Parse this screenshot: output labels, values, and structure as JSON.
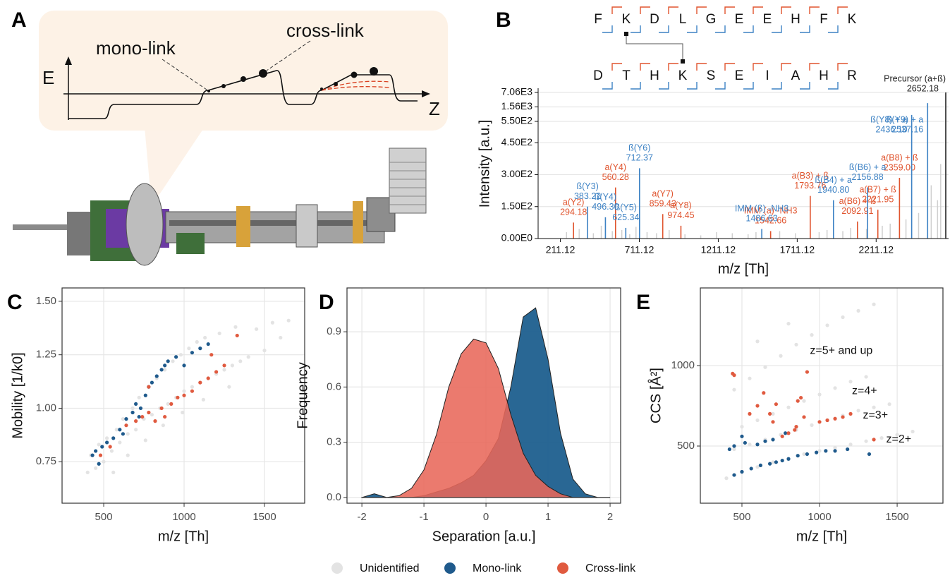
{
  "panel_labels": [
    "A",
    "B",
    "C",
    "D",
    "E"
  ],
  "panel_a": {
    "energy_axis": "E",
    "position_axis": "Z",
    "mono_link": "mono-link",
    "cross_link": "cross-link"
  },
  "chart_data": [
    {
      "type": "spectrum",
      "alpha_sequence": [
        "F",
        "K",
        "D",
        "L",
        "G",
        "E",
        "E",
        "H",
        "F",
        "K"
      ],
      "beta_sequence": [
        "D",
        "T",
        "H",
        "K",
        "S",
        "E",
        "I",
        "A",
        "H",
        "R"
      ],
      "x_label": "m/z [Th]",
      "y_label": "Intensity [a.u.]",
      "xlim": [
        70,
        2670
      ],
      "xticks": [
        211.12,
        711.12,
        1211.12,
        1711.12,
        2211.12
      ],
      "ylim": [
        0,
        7060
      ],
      "yticks": [
        {
          "value": 0,
          "label": "0.00E0"
        },
        {
          "value": 150,
          "label": "1.50E2"
        },
        {
          "value": 300,
          "label": "3.00E2"
        },
        {
          "value": 450,
          "label": "4.50E2"
        },
        {
          "value": 550,
          "label": "5.50E2"
        },
        {
          "value": 1560,
          "label": "1.56E3"
        },
        {
          "value": 7060,
          "label": "7.06E3"
        }
      ],
      "grid": true,
      "background_peaks": {
        "color": "#cfcfcf",
        "x": [
          250,
          330,
          420,
          470,
          540,
          600,
          650,
          690,
          760,
          820,
          900,
          1000,
          1100,
          1200,
          1300,
          1400,
          1450,
          1600,
          1700,
          1850,
          1900,
          2000,
          2050,
          2150,
          2250,
          2300,
          2400,
          2480,
          2560,
          2600,
          2620
        ],
        "values": [
          30,
          45,
          25,
          60,
          35,
          40,
          20,
          55,
          30,
          25,
          40,
          20,
          15,
          30,
          25,
          20,
          30,
          35,
          25,
          30,
          40,
          35,
          50,
          45,
          60,
          70,
          90,
          120,
          250,
          180,
          350
        ]
      },
      "fragment_groups": [
        {
          "color": "#e0542e",
          "names": [
            "a(Y2)",
            "a(Y4)",
            "a(Y7)",
            "a(Y8)",
            "IMM (a) -NH3",
            "a(B3) + ß",
            "a(B6) + ß",
            "a(B7) + ß",
            "a(B8) + ß"
          ],
          "x": [
            294.18,
            560.28,
            859.43,
            974.45,
            1542.66,
            1793.76,
            2092.91,
            2221.95,
            2359.0
          ],
          "x_labels": [
            "294.18",
            "560.28",
            "859.43",
            "974.45",
            "1542.66",
            "1793.76",
            "2092.91",
            "2221.95",
            "2359.00"
          ],
          "values": [
            75,
            240,
            115,
            60,
            35,
            200,
            80,
            135,
            285
          ]
        },
        {
          "color": "#3d82c4",
          "names": [
            "ß(Y3)",
            "ß(Y4)",
            "ß(Y5)",
            "ß(Y6)",
            "IMM (ß) -NH3",
            "ß(B4) + a",
            "ß(B6) + a",
            "ß(Y8) + a",
            "ß(Y9) + a"
          ],
          "x": [
            383.22,
            496.3,
            625.34,
            712.37,
            1486.63,
            1940.8,
            2156.88,
            2436.1,
            2537.16
          ],
          "x_labels": [
            "383.22",
            "496.30",
            "625.34",
            "712.37",
            "1486.63",
            "1940.80",
            "2156.88",
            "2436.10",
            "2537.16"
          ],
          "values": [
            150,
            100,
            50,
            330,
            45,
            180,
            240,
            1000,
            3000
          ]
        }
      ],
      "precursor": {
        "label": "Precursor (a+ß)",
        "x": 2652.18,
        "value": 7060,
        "color": "#222222"
      }
    },
    {
      "type": "scatter",
      "x_label": "m/z [Th]",
      "y_label": "Mobility [1/k0]",
      "xlim": [
        241,
        1750
      ],
      "ylim": [
        0.556,
        1.5625
      ],
      "xticks": [
        500,
        1000,
        1500
      ],
      "yticks": [
        0.75,
        {
          "value": 1,
          "label": "1.00"
        },
        1.25,
        {
          "value": 1.5,
          "label": "1.50"
        }
      ],
      "grid": true,
      "series": [
        {
          "name": "Unidentified",
          "color": "#e3e3e3",
          "x": [
            400,
            420,
            450,
            470,
            500,
            520,
            550,
            580,
            600,
            620,
            650,
            680,
            700,
            720,
            750,
            780,
            800,
            830,
            850,
            880,
            900,
            930,
            950,
            980,
            1000,
            1030,
            1050,
            1080,
            1100,
            1130,
            1150,
            1200,
            1220,
            1250,
            1300,
            1320,
            1350,
            1400,
            1450,
            1500,
            1550,
            1600,
            1650,
            560,
            650,
            760,
            870,
            990,
            1120,
            1280
          ],
          "values": [
            0.7,
            0.78,
            0.72,
            0.83,
            0.75,
            0.86,
            0.8,
            0.9,
            0.84,
            0.95,
            0.88,
            1.0,
            0.9,
            1.05,
            0.95,
            1.1,
            0.97,
            1.14,
            1.0,
            1.18,
            1.02,
            1.22,
            1.05,
            1.25,
            1.08,
            1.28,
            1.1,
            1.31,
            1.12,
            1.33,
            1.14,
            1.16,
            1.35,
            1.18,
            1.2,
            1.38,
            1.22,
            1.24,
            1.37,
            1.27,
            1.4,
            1.33,
            1.41,
            0.7,
            0.78,
            0.85,
            0.92,
            0.98,
            1.04,
            1.1
          ]
        },
        {
          "name": "Mono-link",
          "color": "#1f5a8c",
          "x": [
            430,
            450,
            470,
            490,
            520,
            560,
            600,
            640,
            680,
            700,
            730,
            760,
            780,
            800,
            830,
            860,
            880,
            900,
            950,
            1000,
            1050,
            1100,
            1150,
            620,
            720
          ],
          "values": [
            0.78,
            0.8,
            0.74,
            0.82,
            0.84,
            0.86,
            0.9,
            0.95,
            0.98,
            1.02,
            1.0,
            1.06,
            1.1,
            1.12,
            1.15,
            1.18,
            1.2,
            1.22,
            1.24,
            1.2,
            1.26,
            1.28,
            1.3,
            0.88,
            0.96
          ]
        },
        {
          "name": "Cross-link",
          "color": "#e05a3f",
          "x": [
            480,
            540,
            640,
            700,
            740,
            780,
            820,
            860,
            880,
            920,
            960,
            1000,
            1050,
            1100,
            1150,
            1200,
            1250,
            1330,
            780,
            1170
          ],
          "values": [
            0.78,
            0.82,
            0.92,
            0.94,
            0.96,
            0.98,
            0.94,
            1.0,
            0.96,
            1.02,
            1.05,
            1.06,
            1.08,
            1.12,
            1.14,
            1.17,
            1.2,
            1.34,
            1.1,
            1.25
          ]
        }
      ]
    },
    {
      "type": "density",
      "x_label": "Separation [a.u.]",
      "y_label": "Frequency",
      "xlim": [
        -2.24,
        2.17
      ],
      "ylim": [
        -0.031,
        1.138
      ],
      "xticks": [
        -2,
        -1,
        0,
        1,
        2
      ],
      "yticks": [
        {
          "value": 0,
          "label": "0.0"
        },
        0.3,
        0.6,
        0.9
      ],
      "grid": true,
      "x": [
        -2,
        -1.8,
        -1.6,
        -1.4,
        -1.2,
        -1,
        -0.8,
        -0.6,
        -0.4,
        -0.2,
        0,
        0.2,
        0.4,
        0.6,
        0.8,
        1,
        1.2,
        1.4,
        1.6,
        1.8,
        2
      ],
      "series": [
        {
          "color": "#1d5f8e",
          "values": [
            0,
            0.02,
            0,
            0,
            0,
            0.01,
            0.03,
            0.05,
            0.08,
            0.12,
            0.2,
            0.32,
            0.6,
            0.98,
            1.03,
            0.75,
            0.35,
            0.1,
            0.02,
            0,
            0
          ]
        },
        {
          "color": "#e8685a",
          "values": [
            0,
            0,
            0,
            0.01,
            0.05,
            0.15,
            0.34,
            0.6,
            0.78,
            0.86,
            0.84,
            0.7,
            0.45,
            0.24,
            0.12,
            0.06,
            0.02,
            0,
            0,
            0,
            0
          ]
        }
      ]
    },
    {
      "type": "scatter",
      "x_label": "m/z [Th]",
      "y_label": "CCS [Å²]",
      "xlim": [
        232,
        1795
      ],
      "ylim": [
        145,
        1482
      ],
      "xticks": [
        500,
        1000,
        1500
      ],
      "yticks": [
        500,
        1000
      ],
      "grid": true,
      "annotations": [
        "z=5+ and up",
        "z=4+",
        "z=3+",
        "z=2+"
      ],
      "series": [
        {
          "color": "#e3e3e3",
          "x": [
            400,
            500,
            600,
            700,
            800,
            900,
            1000,
            1100,
            1200,
            1300,
            1400,
            1500,
            1600,
            450,
            550,
            650,
            750,
            850,
            950,
            1050,
            1150,
            1250,
            1350,
            1450,
            500,
            600,
            700,
            800,
            900,
            1000,
            1100,
            1200,
            1300,
            450,
            550,
            650,
            750,
            850,
            950,
            1050,
            1150,
            1250,
            1350,
            600,
            800
          ],
          "values": [
            300,
            340,
            370,
            400,
            420,
            450,
            470,
            490,
            510,
            530,
            550,
            570,
            590,
            480,
            510,
            540,
            570,
            600,
            630,
            660,
            690,
            720,
            740,
            760,
            620,
            660,
            700,
            740,
            780,
            820,
            860,
            900,
            930,
            850,
            920,
            990,
            1060,
            1130,
            1190,
            1250,
            1300,
            1340,
            1380,
            1150,
            1260
          ]
        },
        {
          "color": "#1f5a8c",
          "x": [
            450,
            500,
            560,
            620,
            680,
            720,
            760,
            800,
            860,
            920,
            980,
            1040,
            1100,
            1180,
            1320,
            450,
            520,
            600,
            650,
            700,
            500,
            780,
            420
          ],
          "values": [
            320,
            340,
            360,
            380,
            390,
            400,
            410,
            420,
            440,
            450,
            460,
            470,
            470,
            480,
            450,
            500,
            520,
            510,
            530,
            540,
            560,
            580,
            480
          ]
        },
        {
          "color": "#e05a3f",
          "x": [
            440,
            450,
            550,
            600,
            640,
            680,
            700,
            720,
            760,
            800,
            840,
            860,
            880,
            900,
            920,
            1000,
            1050,
            1100,
            1150,
            1200,
            1350,
            850
          ],
          "values": [
            950,
            940,
            700,
            750,
            830,
            700,
            650,
            760,
            560,
            580,
            600,
            780,
            800,
            680,
            960,
            650,
            660,
            670,
            680,
            700,
            540,
            620
          ]
        }
      ]
    }
  ]
}
